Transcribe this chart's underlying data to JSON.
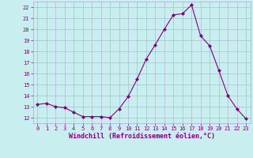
{
  "x": [
    0,
    1,
    2,
    3,
    4,
    5,
    6,
    7,
    8,
    9,
    10,
    11,
    12,
    13,
    14,
    15,
    16,
    17,
    18,
    19,
    20,
    21,
    22,
    23
  ],
  "y": [
    13.2,
    13.3,
    13.0,
    12.9,
    12.5,
    12.1,
    12.1,
    12.1,
    12.0,
    12.8,
    13.9,
    15.5,
    17.3,
    18.6,
    20.0,
    21.3,
    21.4,
    22.2,
    19.4,
    18.5,
    16.3,
    14.0,
    12.8,
    11.9
  ],
  "line_color": "#800080",
  "marker": "D",
  "marker_size": 2.0,
  "bg_color": "#c8eef0",
  "grid_color": "#aaaacc",
  "xlabel": "Windchill (Refroidissement éolien,°C)",
  "xlim": [
    -0.5,
    23.5
  ],
  "ylim": [
    11.5,
    22.5
  ],
  "yticks": [
    12,
    13,
    14,
    15,
    16,
    17,
    18,
    19,
    20,
    21,
    22
  ],
  "xticks": [
    0,
    1,
    2,
    3,
    4,
    5,
    6,
    7,
    8,
    9,
    10,
    11,
    12,
    13,
    14,
    15,
    16,
    17,
    18,
    19,
    20,
    21,
    22,
    23
  ],
  "label_fontsize": 6.0,
  "tick_fontsize": 5.0,
  "line_width": 0.8
}
